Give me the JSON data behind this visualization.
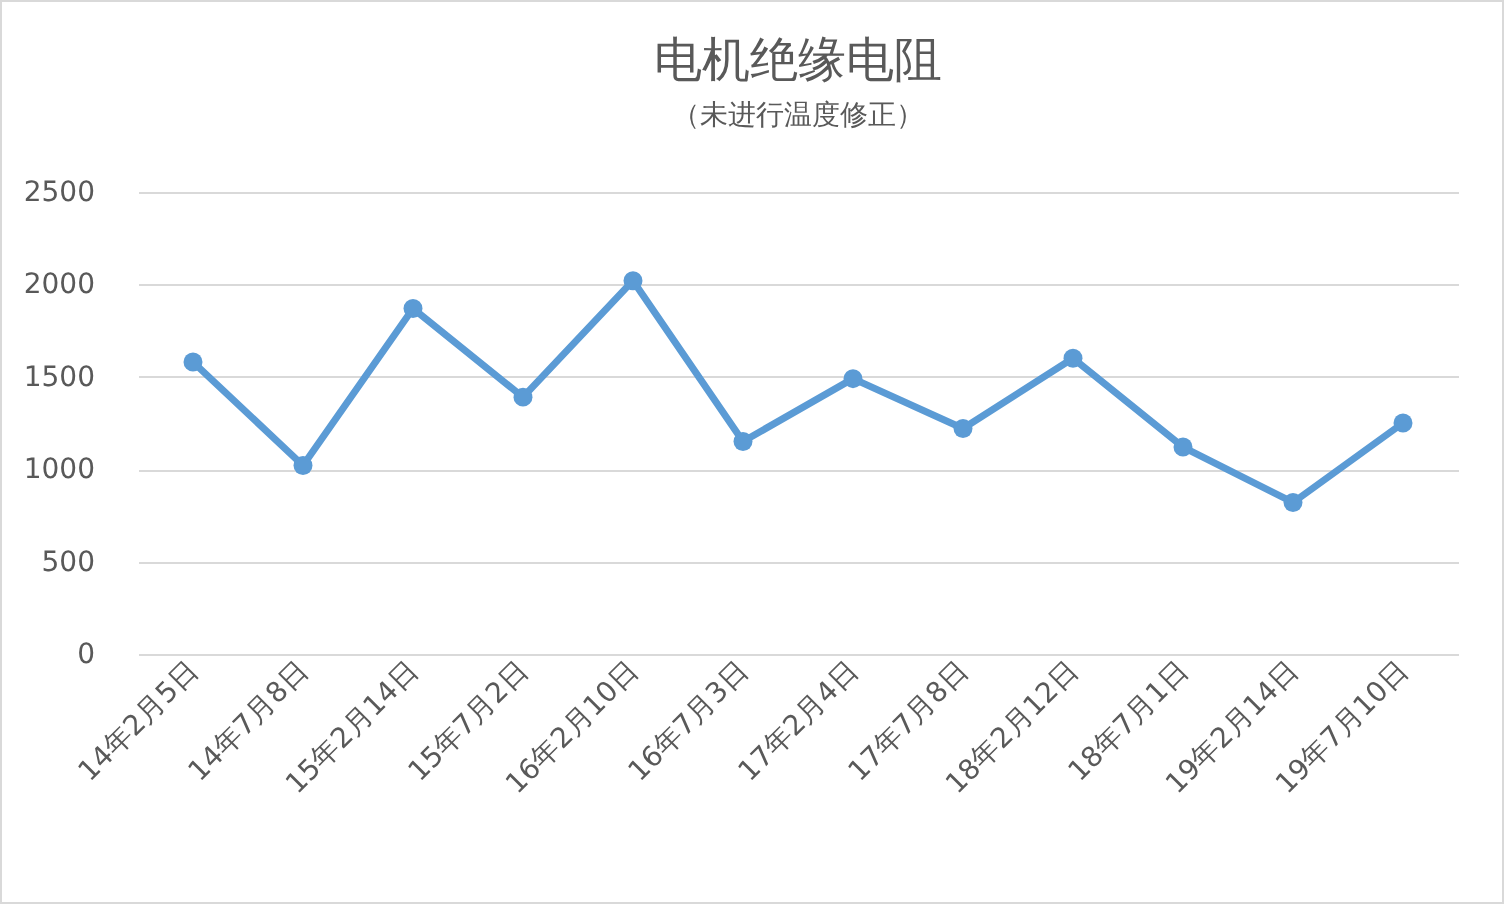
{
  "chart_data": {
    "type": "line",
    "title": "电机绝缘电阻",
    "subtitle": "（未进行温度修正）",
    "categories": [
      "14年2月5日",
      "14年7月8日",
      "15年2月14日",
      "15年7月2日",
      "16年2月10日",
      "16年7月3日",
      "17年2月4日",
      "17年7月8日",
      "18年2月12日",
      "18年7月1日",
      "19年2月14日",
      "19年7月10日"
    ],
    "series": [
      {
        "color": "#5b9bd5",
        "values": [
          1580,
          1020,
          1870,
          1390,
          2020,
          1150,
          1490,
          1220,
          1600,
          1120,
          820,
          1250
        ]
      }
    ],
    "ylim": [
      0,
      2500
    ],
    "yticks": [
      0,
      500,
      1000,
      1500,
      2000,
      2500
    ],
    "grid": "y",
    "marker": "circle",
    "line_style": "solid"
  }
}
